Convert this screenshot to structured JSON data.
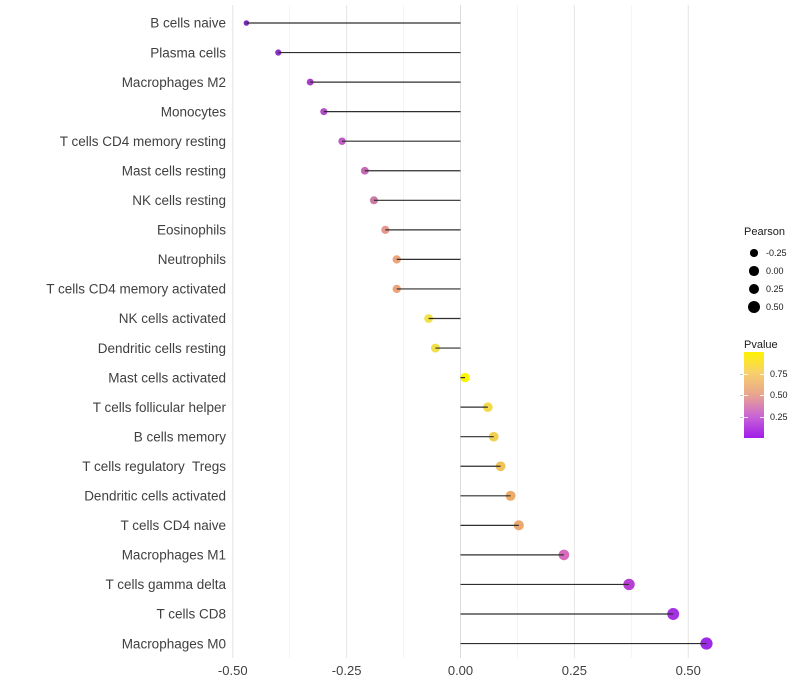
{
  "figure": {
    "background": "#ffffff",
    "description": "Lollipop chart of immune cell type correlations (Pearson) colored by P-value"
  },
  "chart_data": {
    "type": "scatter",
    "subtype": "lollipop",
    "title": "",
    "xlabel": "",
    "ylabel": "",
    "xlim": [
      -0.56,
      0.575
    ],
    "grid": "on",
    "x_ticks": [
      {
        "value": -0.5,
        "label": "-0.50"
      },
      {
        "value": -0.25,
        "label": "-0.25"
      },
      {
        "value": 0.0,
        "label": "0.00"
      },
      {
        "value": 0.25,
        "label": "0.25"
      },
      {
        "value": 0.5,
        "label": "0.50"
      }
    ],
    "x_minor_ticks": [
      -0.375,
      -0.125,
      0.125,
      0.375
    ],
    "points": [
      {
        "label": "B cells naive",
        "pearson": -0.47,
        "pvalue_approx": 0.02,
        "color": "#7a2bc4"
      },
      {
        "label": "Plasma cells",
        "pearson": -0.4,
        "pvalue_approx": 0.05,
        "color": "#8d31c9"
      },
      {
        "label": "Macrophages M2",
        "pearson": -0.33,
        "pvalue_approx": 0.1,
        "color": "#a73fcc"
      },
      {
        "label": "Monocytes",
        "pearson": -0.3,
        "pvalue_approx": 0.13,
        "color": "#b34cca"
      },
      {
        "label": "T cells CD4 memory resting",
        "pearson": -0.26,
        "pvalue_approx": 0.18,
        "color": "#c05ac4"
      },
      {
        "label": "Mast cells resting",
        "pearson": -0.21,
        "pvalue_approx": 0.25,
        "color": "#c569b4"
      },
      {
        "label": "NK cells resting",
        "pearson": -0.19,
        "pvalue_approx": 0.32,
        "color": "#c97aa2"
      },
      {
        "label": "Eosinophils",
        "pearson": -0.165,
        "pvalue_approx": 0.45,
        "color": "#e5998e"
      },
      {
        "label": "Neutrophils",
        "pearson": -0.14,
        "pvalue_approx": 0.52,
        "color": "#eba47c"
      },
      {
        "label": "T cells CD4 memory activated",
        "pearson": -0.14,
        "pvalue_approx": 0.52,
        "color": "#eba47c"
      },
      {
        "label": "NK cells activated",
        "pearson": -0.07,
        "pvalue_approx": 0.85,
        "color": "#f2e14a"
      },
      {
        "label": "Dendritic cells resting",
        "pearson": -0.055,
        "pvalue_approx": 0.85,
        "color": "#f1df47"
      },
      {
        "label": "Mast cells activated",
        "pearson": 0.01,
        "pvalue_approx": 0.97,
        "color": "#fbf500"
      },
      {
        "label": "T cells follicular helper",
        "pearson": 0.06,
        "pvalue_approx": 0.82,
        "color": "#f3da48"
      },
      {
        "label": "B cells memory",
        "pearson": 0.073,
        "pvalue_approx": 0.78,
        "color": "#f1cf50"
      },
      {
        "label": "T cells regulatory  Tregs",
        "pearson": 0.088,
        "pvalue_approx": 0.72,
        "color": "#efc35a"
      },
      {
        "label": "Dendritic cells activated",
        "pearson": 0.11,
        "pvalue_approx": 0.62,
        "color": "#ecab67"
      },
      {
        "label": "T cells CD4 naive",
        "pearson": 0.128,
        "pvalue_approx": 0.6,
        "color": "#eaa96e"
      },
      {
        "label": "Macrophages M1",
        "pearson": 0.227,
        "pvalue_approx": 0.28,
        "color": "#d76cbd"
      },
      {
        "label": "T cells gamma delta",
        "pearson": 0.37,
        "pvalue_approx": 0.1,
        "color": "#b73fd3"
      },
      {
        "label": "T cells CD8",
        "pearson": 0.467,
        "pvalue_approx": 0.06,
        "color": "#a532e0"
      },
      {
        "label": "Macrophages M0",
        "pearson": 0.54,
        "pvalue_approx": 0.04,
        "color": "#9c2ae6"
      }
    ],
    "legend_pearson": {
      "title": "Pearson",
      "items": [
        {
          "value": -0.25,
          "label": "-0.25"
        },
        {
          "value": 0.0,
          "label": "0.00"
        },
        {
          "value": 0.25,
          "label": "0.25"
        },
        {
          "value": 0.5,
          "label": "0.50"
        }
      ]
    },
    "legend_pvalue": {
      "title": "Pvalue",
      "ticks": [
        {
          "value": 0.75,
          "label": "0.75"
        },
        {
          "value": 0.5,
          "label": "0.50"
        },
        {
          "value": 0.25,
          "label": "0.25"
        }
      ],
      "range": [
        0,
        1
      ],
      "gradient": [
        {
          "offset": 0.0,
          "color": "#fdf300"
        },
        {
          "offset": 0.23,
          "color": "#f8d268"
        },
        {
          "offset": 0.5,
          "color": "#e8a48f"
        },
        {
          "offset": 0.75,
          "color": "#c964d6"
        },
        {
          "offset": 1.0,
          "color": "#a11ce8"
        }
      ]
    },
    "colors": {
      "stem": "#2e2e2e",
      "grid_major": "#e4e4e4",
      "grid_minor": "#f2f2f2",
      "zero_line": "#dcdcdc",
      "axis_text": "#404040",
      "legend_dot": "#000000"
    }
  }
}
